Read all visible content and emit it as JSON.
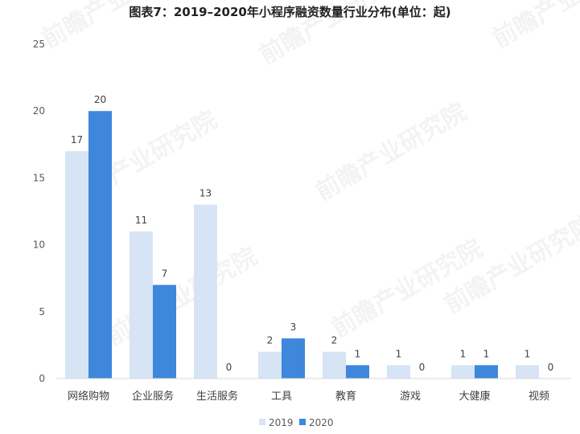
{
  "chart_data": {
    "type": "bar",
    "title": "图表7：2019–2020年小程序融资数量行业分布(单位：起)",
    "categories": [
      "网络购物",
      "企业服务",
      "生活服务",
      "工具",
      "教育",
      "游戏",
      "大健康",
      "视频"
    ],
    "series": [
      {
        "name": "2019",
        "values": [
          17,
          11,
          13,
          2,
          2,
          1,
          1,
          1
        ],
        "color": "#d6e4f5"
      },
      {
        "name": "2020",
        "values": [
          20,
          7,
          0,
          3,
          1,
          0,
          1,
          0
        ],
        "color": "#3e87db"
      }
    ],
    "yticks": [
      0,
      5,
      10,
      15,
      20,
      25
    ],
    "ylim": [
      0,
      25
    ],
    "grid": false,
    "legend_position": "bottom",
    "axis_color": "#d9d9d9"
  },
  "watermark": {
    "text": "前瞻产业研究院"
  }
}
